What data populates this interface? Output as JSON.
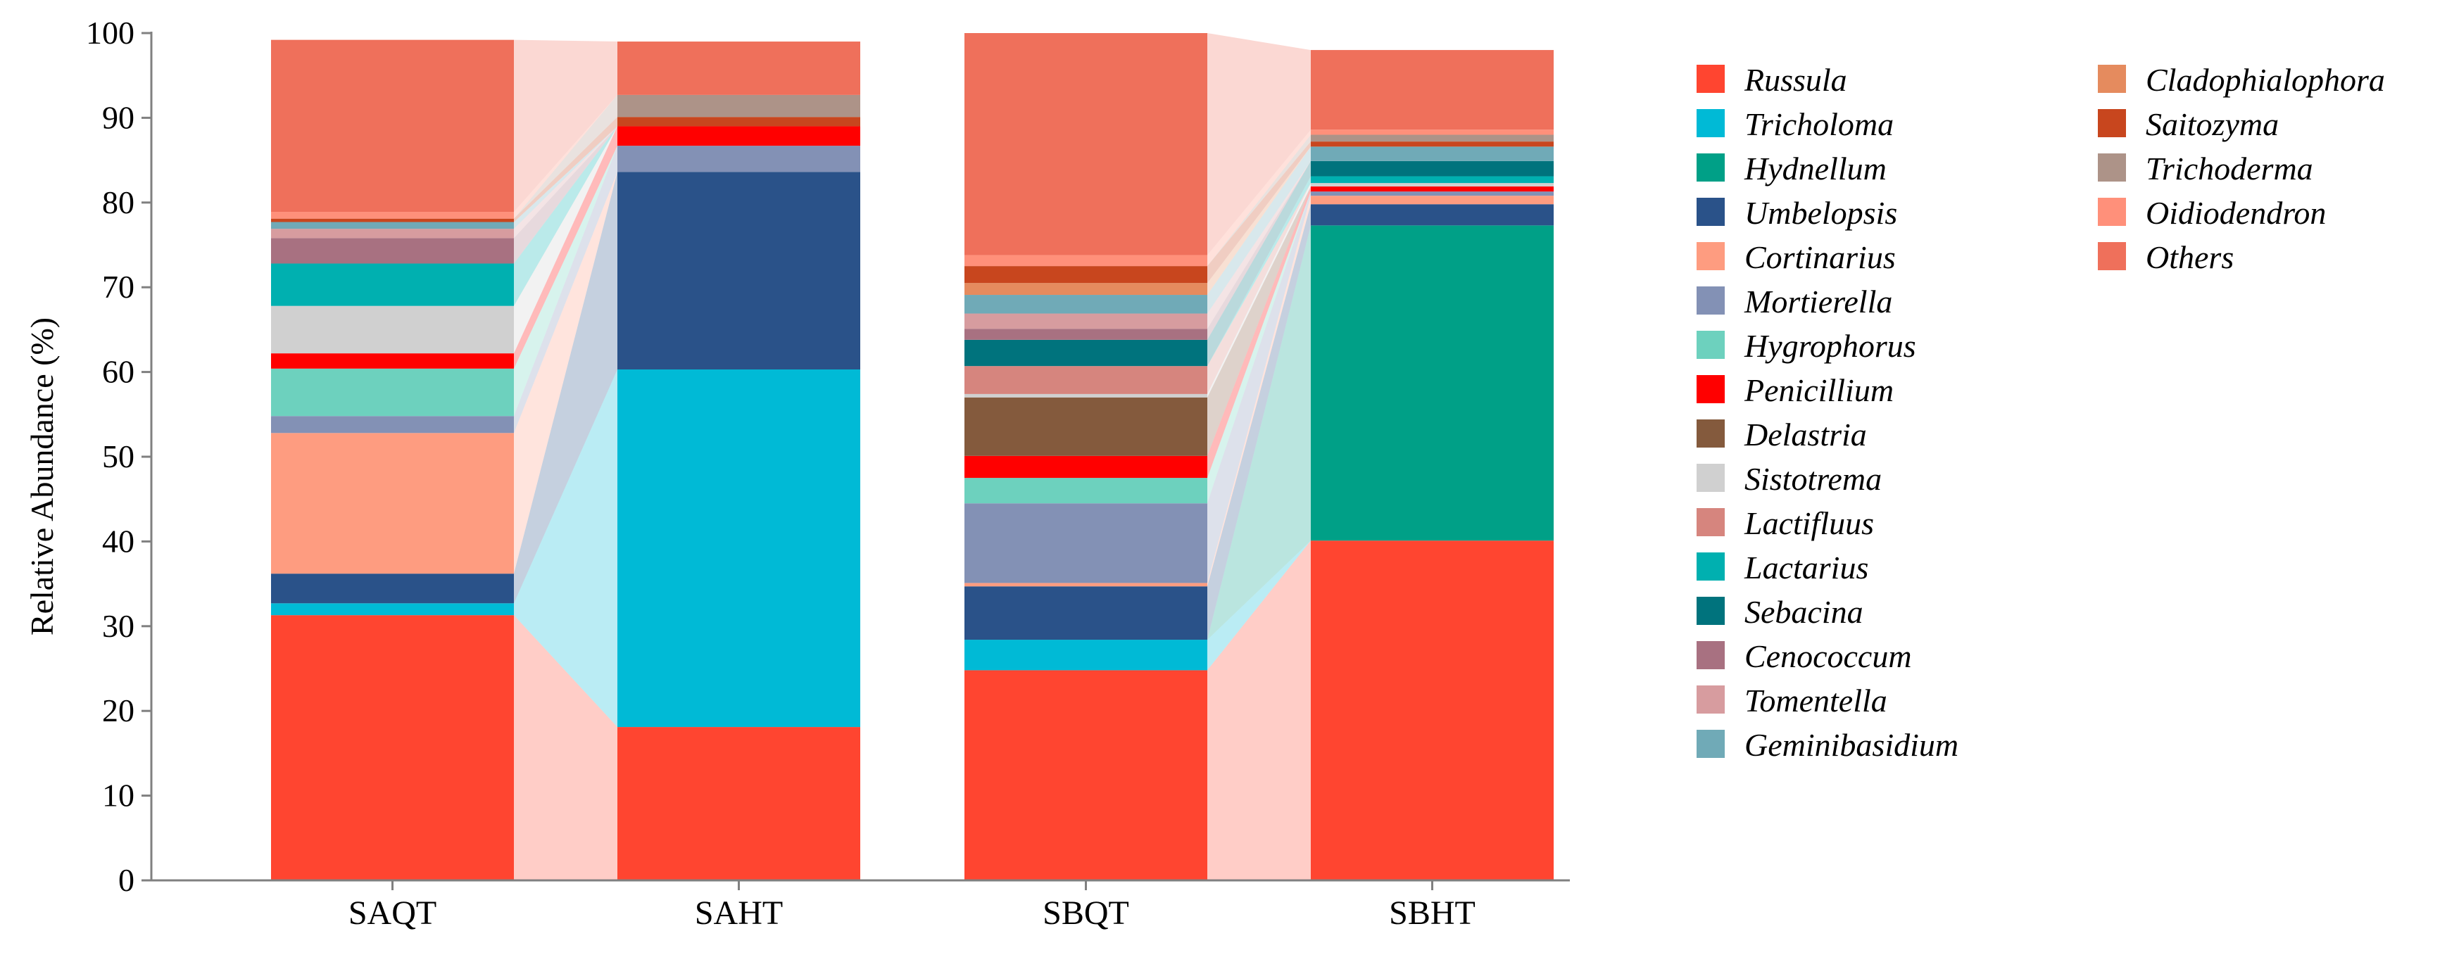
{
  "chart_data": {
    "type": "bar",
    "stacked": true,
    "ylabel": "Relative Abundance (%)",
    "xlabel": "",
    "ylim": [
      0,
      100
    ],
    "yticks": [
      "0",
      "10",
      "20",
      "30",
      "40",
      "50",
      "60",
      "70",
      "80",
      "90",
      "100"
    ],
    "categories": [
      "SAQT",
      "SAHT",
      "SBQT",
      "SBHT"
    ],
    "series": [
      {
        "name": "Russula",
        "color": "#FF4530",
        "values": [
          31.3,
          18.1,
          24.8,
          40.1
        ]
      },
      {
        "name": "Tricholoma",
        "color": "#00BAD6",
        "values": [
          1.4,
          42.2,
          3.6,
          0.0
        ]
      },
      {
        "name": "Hydnellum",
        "color": "#00A087",
        "values": [
          0.0,
          0.0,
          0.0,
          37.2
        ]
      },
      {
        "name": "Umbelopsis",
        "color": "#2A5289",
        "values": [
          3.5,
          23.3,
          6.3,
          2.5
        ]
      },
      {
        "name": "Cortinarius",
        "color": "#FE9C80",
        "values": [
          16.6,
          0.0,
          0.4,
          1.0
        ]
      },
      {
        "name": "Mortierella",
        "color": "#8391B5",
        "values": [
          2.0,
          3.1,
          9.4,
          0.5
        ]
      },
      {
        "name": "Hygrophorus",
        "color": "#6DD1BE",
        "values": [
          5.6,
          0.0,
          3.0,
          0.0
        ]
      },
      {
        "name": "Penicillium",
        "color": "#FF0000",
        "values": [
          1.8,
          2.3,
          2.6,
          0.6
        ]
      },
      {
        "name": "Delastria",
        "color": "#845A3D",
        "values": [
          0.0,
          0.0,
          6.9,
          0.0
        ]
      },
      {
        "name": "Sistotrema",
        "color": "#D0D0D0",
        "values": [
          5.6,
          0.0,
          0.4,
          0.4
        ]
      },
      {
        "name": "Lactifluus",
        "color": "#D6857E",
        "values": [
          0.0,
          0.0,
          3.3,
          0.0
        ]
      },
      {
        "name": "Lactarius",
        "color": "#00B0B0",
        "values": [
          5.0,
          0.0,
          0.0,
          0.8
        ]
      },
      {
        "name": "Sebacina",
        "color": "#00737D",
        "values": [
          0.0,
          0.0,
          3.1,
          1.8
        ]
      },
      {
        "name": "Cenococcum",
        "color": "#A87181",
        "values": [
          3.0,
          0.0,
          1.3,
          0.0
        ]
      },
      {
        "name": "Tomentella",
        "color": "#D79C9F",
        "values": [
          1.1,
          0.0,
          1.8,
          0.0
        ]
      },
      {
        "name": "Geminibasidium",
        "color": "#70AAB7",
        "values": [
          0.8,
          0.0,
          2.2,
          1.7
        ]
      },
      {
        "name": "Cladophialophora",
        "color": "#E58B5E",
        "values": [
          0.0,
          0.0,
          1.4,
          0.0
        ]
      },
      {
        "name": "Saitozyma",
        "color": "#C8461E",
        "values": [
          0.4,
          1.1,
          2.0,
          0.6
        ]
      },
      {
        "name": "Trichoderma",
        "color": "#AD9388",
        "values": [
          0.0,
          2.6,
          0.0,
          0.8
        ]
      },
      {
        "name": "Oidiodendron",
        "color": "#FF907A",
        "values": [
          0.8,
          0.0,
          1.3,
          0.6
        ]
      },
      {
        "name": "Others",
        "color": "#EF705B",
        "values": [
          20.3,
          6.3,
          26.2,
          9.4
        ]
      }
    ],
    "legend_columns": [
      [
        "Russula",
        "Tricholoma",
        "Hydnellum",
        "Umbelopsis",
        "Cortinarius",
        "Mortierella",
        "Hygrophorus",
        "Penicillium",
        "Delastria",
        "Sistotrema",
        "Lactifluus",
        "Lactarius",
        "Sebacina",
        "Cenococcum",
        "Tomentella",
        "Geminibasidium"
      ],
      [
        "Cladophialophora",
        "Saitozyma",
        "Trichoderma",
        "Oidiodendron",
        "Others"
      ]
    ],
    "connectors": [
      [
        0,
        1
      ],
      [
        2,
        3
      ]
    ],
    "legend_position": "right",
    "grid": false
  }
}
